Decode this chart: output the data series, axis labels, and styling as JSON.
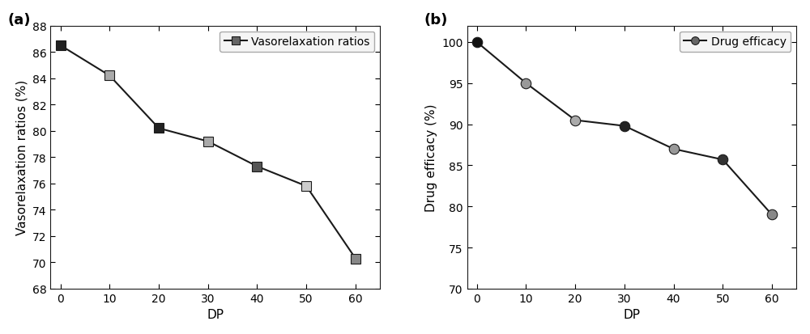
{
  "plot_a": {
    "label": "(a)",
    "x": [
      0,
      10,
      20,
      30,
      40,
      50,
      60
    ],
    "y": [
      86.5,
      84.2,
      80.2,
      79.2,
      77.3,
      75.8,
      70.3
    ],
    "xlabel": "DP",
    "ylabel": "Vasorelaxation ratios (%)",
    "ylim": [
      68,
      88
    ],
    "yticks": [
      68,
      70,
      72,
      74,
      76,
      78,
      80,
      82,
      84,
      86,
      88
    ],
    "xlim": [
      -2,
      65
    ],
    "xticks": [
      0,
      10,
      20,
      30,
      40,
      50,
      60
    ],
    "legend_label": "Vasorelaxation ratios",
    "marker": "s",
    "line_color": "#1a1a1a",
    "marker_colors": [
      "#222222",
      "#aaaaaa",
      "#222222",
      "#aaaaaa",
      "#555555",
      "#cccccc",
      "#888888"
    ]
  },
  "plot_b": {
    "label": "(b)",
    "x": [
      0,
      10,
      20,
      30,
      40,
      50,
      60
    ],
    "y": [
      100.0,
      95.0,
      90.5,
      89.8,
      87.0,
      85.7,
      79.0
    ],
    "xlabel": "DP",
    "ylabel": "Drug efficacy (%)",
    "ylim": [
      70,
      102
    ],
    "yticks": [
      70,
      75,
      80,
      85,
      90,
      95,
      100
    ],
    "xlim": [
      -2,
      65
    ],
    "xticks": [
      0,
      10,
      20,
      30,
      40,
      50,
      60
    ],
    "legend_label": "Drug efficacy",
    "marker": "o",
    "line_color": "#1a1a1a",
    "marker_colors": [
      "#111111",
      "#999999",
      "#aaaaaa",
      "#222222",
      "#999999",
      "#333333",
      "#888888"
    ]
  },
  "figure_bg": "#ffffff",
  "axes_bg": "#ffffff",
  "font_size": 10,
  "label_fontsize": 11,
  "panel_label_fontsize": 13
}
